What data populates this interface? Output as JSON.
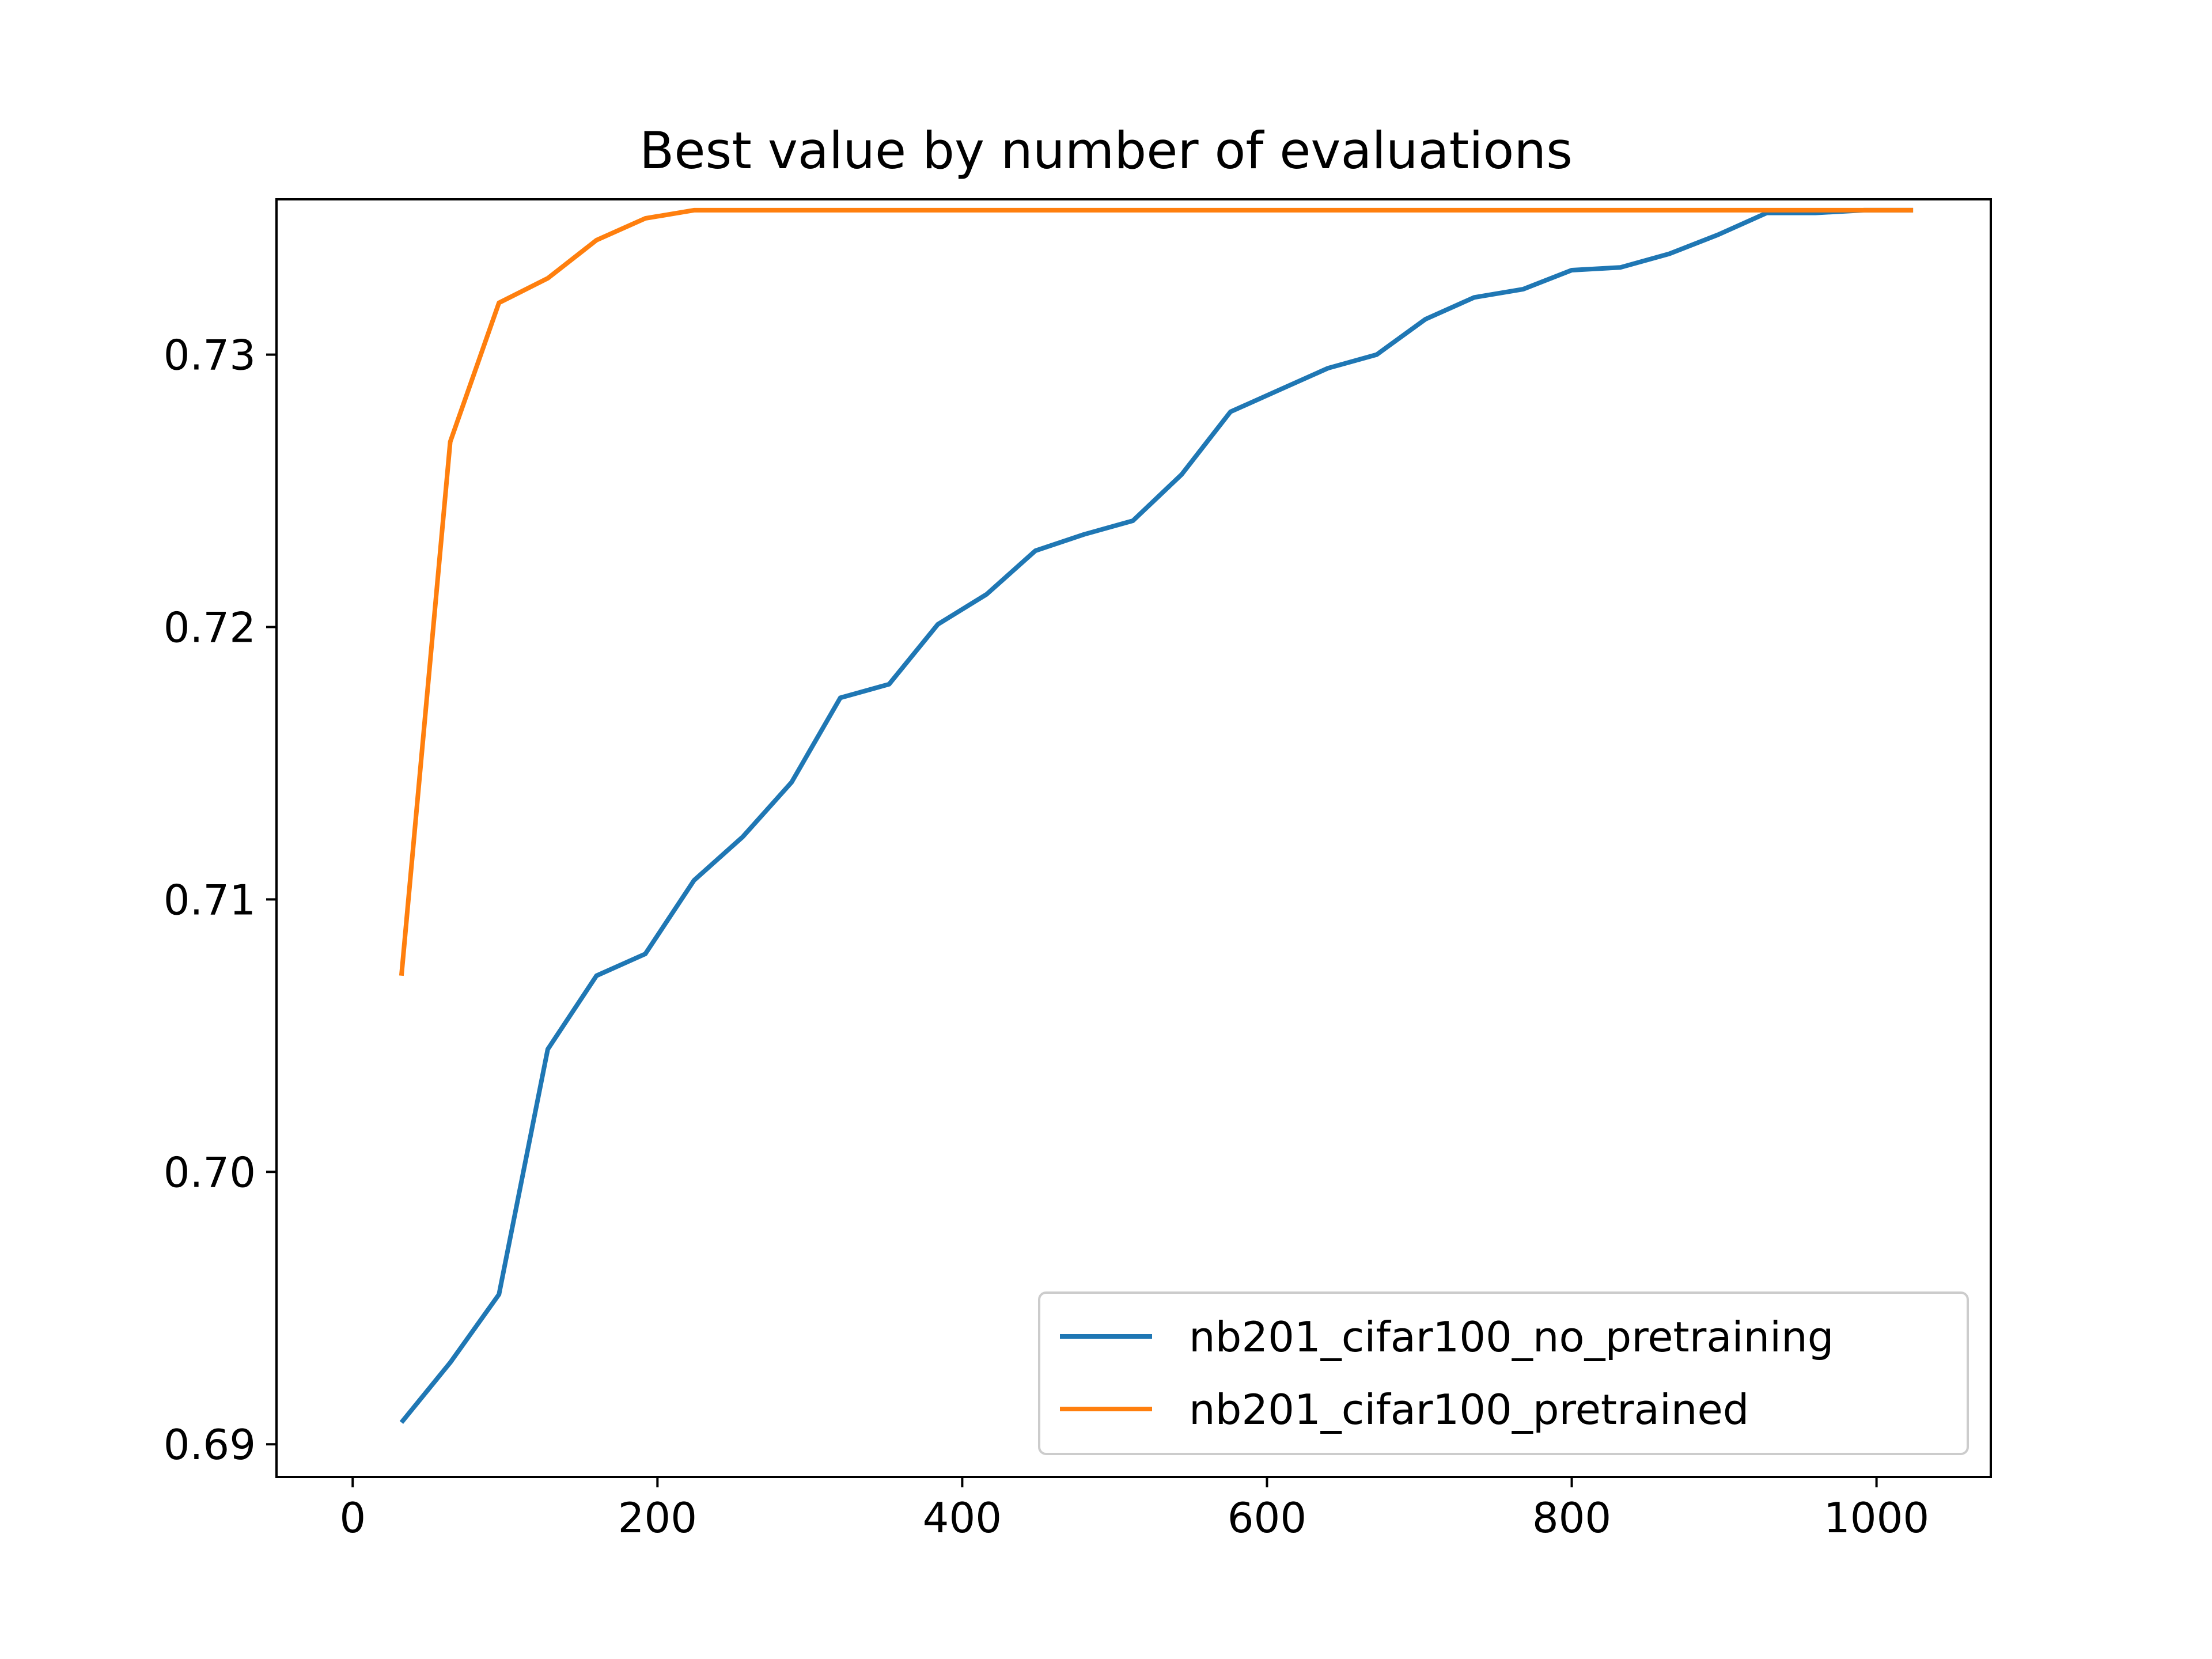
{
  "chart_data": {
    "type": "line",
    "title": "Best value by number of evaluations",
    "xlabel": "",
    "ylabel": "",
    "xlim": [
      -50,
      1075
    ],
    "ylim": [
      0.6888,
      0.7357
    ],
    "xticks": [
      0,
      200,
      400,
      600,
      800,
      1000
    ],
    "xtick_labels": [
      "0",
      "200",
      "400",
      "600",
      "800",
      "1000"
    ],
    "yticks": [
      0.69,
      0.7,
      0.71,
      0.72,
      0.73
    ],
    "ytick_labels": [
      "0.69",
      "0.70",
      "0.71",
      "0.72",
      "0.73"
    ],
    "grid": false,
    "legend_position": "lower-right",
    "x": [
      32,
      64,
      96,
      128,
      160,
      192,
      224,
      256,
      288,
      320,
      352,
      384,
      416,
      448,
      480,
      512,
      544,
      576,
      608,
      640,
      672,
      704,
      736,
      768,
      800,
      832,
      864,
      896,
      928,
      960,
      992,
      1024
    ],
    "series": [
      {
        "name": "nb201_cifar100_no_pretraining",
        "color": "#1f77b4",
        "values": [
          0.6908,
          0.693,
          0.6955,
          0.7045,
          0.7072,
          0.708,
          0.7107,
          0.7123,
          0.7143,
          0.7174,
          0.7179,
          0.7201,
          0.7212,
          0.7228,
          0.7234,
          0.7239,
          0.7256,
          0.7279,
          0.7287,
          0.7295,
          0.73,
          0.7313,
          0.7321,
          0.7324,
          0.7331,
          0.7332,
          0.7337,
          0.7344,
          0.7352,
          0.7352,
          0.7353,
          0.7353
        ]
      },
      {
        "name": "nb201_cifar100_pretrained",
        "color": "#ff7f0e",
        "values": [
          0.7072,
          0.7268,
          0.7319,
          0.7328,
          0.7342,
          0.735,
          0.7353,
          0.7353,
          0.7353,
          0.7353,
          0.7353,
          0.7353,
          0.7353,
          0.7353,
          0.7353,
          0.7353,
          0.7353,
          0.7353,
          0.7353,
          0.7353,
          0.7353,
          0.7353,
          0.7353,
          0.7353,
          0.7353,
          0.7353,
          0.7353,
          0.7353,
          0.7353,
          0.7353,
          0.7353,
          0.7353
        ]
      }
    ]
  }
}
